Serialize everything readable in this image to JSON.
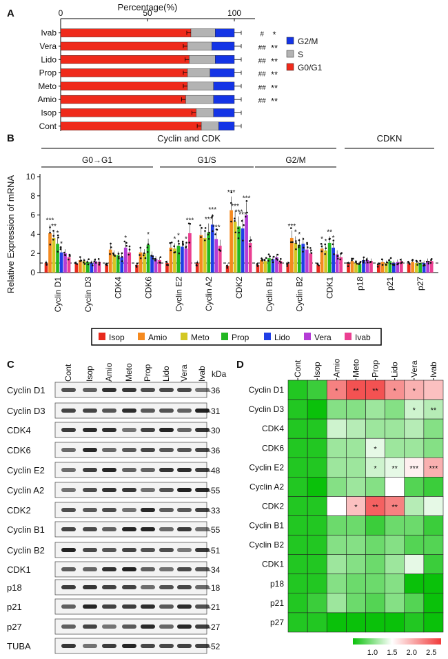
{
  "panel_labels": {
    "a": "A",
    "b": "B",
    "c": "C",
    "d": "D"
  },
  "chart_data": [
    {
      "panel": "A",
      "type": "bar",
      "orientation": "horizontal",
      "stacked": true,
      "xlabel": "Percentage(%)",
      "xlim": [
        0,
        100
      ],
      "xticks": [
        "0",
        "50",
        "100"
      ],
      "categories": [
        "Ivab",
        "Vera",
        "Lido",
        "Prop",
        "Meto",
        "Amio",
        "Isop",
        "Cont"
      ],
      "series": [
        {
          "name": "G0/G1",
          "color": "#ef2a1b",
          "values": [
            75,
            73,
            74,
            73,
            73,
            72,
            78,
            81
          ]
        },
        {
          "name": "S",
          "color": "#b3b3b3",
          "values": [
            14,
            14,
            15,
            13,
            15,
            16,
            10,
            10
          ]
        },
        {
          "name": "G2/M",
          "color": "#1434e6",
          "values": [
            11,
            13,
            11,
            14,
            12,
            12,
            12,
            9
          ]
        }
      ],
      "legend_order": [
        "G2/M",
        "S",
        "G0/G1"
      ],
      "legend_position": "right",
      "significance": [
        {
          "row": "Ivab",
          "hash": "#",
          "stars": "*"
        },
        {
          "row": "Vera",
          "hash": "##",
          "stars": "**"
        },
        {
          "row": "Lido",
          "hash": "##",
          "stars": "**"
        },
        {
          "row": "Prop",
          "hash": "##",
          "stars": "**"
        },
        {
          "row": "Meto",
          "hash": "##",
          "stars": "**"
        },
        {
          "row": "Amio",
          "hash": "##",
          "stars": "**"
        },
        {
          "row": "Isop",
          "hash": "",
          "stars": ""
        },
        {
          "row": "Cont",
          "hash": "",
          "stars": ""
        }
      ]
    },
    {
      "panel": "B",
      "type": "bar",
      "ylabel": "Relative Expression of mRNA",
      "ylim": [
        0,
        10
      ],
      "yticks": [
        "0",
        "2",
        "4",
        "6",
        "8",
        "10"
      ],
      "reference_line": 1,
      "categories": [
        "Cyclin D1",
        "Cyclin D3",
        "CDK4",
        "CDK6",
        "Cyclin E2",
        "Cyclin A2",
        "CDK2",
        "Cyclin B1",
        "Cyclin B2",
        "CDK1",
        "p18",
        "p21",
        "p27"
      ],
      "groups": {
        "top": [
          {
            "label": "Cyclin and CDK"
          },
          {
            "label": "CDKN"
          }
        ],
        "sub": [
          {
            "label": "G0→G1"
          },
          {
            "label": "G1/S"
          },
          {
            "label": "G2/M"
          }
        ]
      },
      "series": [
        {
          "name": "Isop",
          "color": "#e8291c",
          "values": [
            1.0,
            0.9,
            0.8,
            0.8,
            1.0,
            1.0,
            0.7,
            0.8,
            0.9,
            0.8,
            0.9,
            0.8,
            0.9
          ]
        },
        {
          "name": "Amio",
          "color": "#f58a1f",
          "values": [
            4.1,
            1.3,
            2.4,
            2.1,
            2.6,
            3.9,
            6.5,
            1.3,
            3.6,
            2.5,
            1.2,
            1.1,
            1.1
          ]
        },
        {
          "name": "Meto",
          "color": "#d3c723",
          "values": [
            3.6,
            1.2,
            1.9,
            2.0,
            2.5,
            3.6,
            5.3,
            1.2,
            3.1,
            2.3,
            1.0,
            1.0,
            1.0
          ]
        },
        {
          "name": "Prop",
          "color": "#22b822",
          "values": [
            3.0,
            1.1,
            1.8,
            2.9,
            2.8,
            4.2,
            4.8,
            1.5,
            2.9,
            3.1,
            0.9,
            1.2,
            1.0
          ]
        },
        {
          "name": "Lido",
          "color": "#1f3ee6",
          "values": [
            2.1,
            1.0,
            1.6,
            1.8,
            2.7,
            5.0,
            4.6,
            1.4,
            3.0,
            2.6,
            1.3,
            1.0,
            1.0
          ]
        },
        {
          "name": "Vera",
          "color": "#b43cd6",
          "values": [
            2.0,
            1.2,
            2.6,
            1.4,
            2.5,
            3.5,
            6.0,
            1.6,
            2.4,
            1.9,
            1.3,
            1.1,
            1.2
          ]
        },
        {
          "name": "Ivab",
          "color": "#eb3f91",
          "values": [
            1.6,
            1.1,
            2.1,
            1.3,
            4.1,
            2.8,
            3.1,
            1.2,
            2.0,
            1.6,
            1.2,
            1.2,
            1.2
          ]
        }
      ],
      "significance": [
        {
          "category": "Cyclin D1",
          "series": "Amio",
          "label": "***"
        },
        {
          "category": "Cyclin D1",
          "series": "Meto",
          "label": "**"
        },
        {
          "category": "Cyclin D1",
          "series": "Prop",
          "label": "*"
        },
        {
          "category": "Cyclin D1",
          "series": "Lido",
          "label": "*"
        },
        {
          "category": "CDK4",
          "series": "Vera",
          "label": "*"
        },
        {
          "category": "CDK6",
          "series": "Prop",
          "label": "*"
        },
        {
          "category": "Cyclin E2",
          "series": "Meto",
          "label": "*"
        },
        {
          "category": "Cyclin E2",
          "series": "Prop",
          "label": "*"
        },
        {
          "category": "Cyclin E2",
          "series": "Vera",
          "label": "*"
        },
        {
          "category": "Cyclin E2",
          "series": "Ivab",
          "label": "***"
        },
        {
          "category": "Cyclin A2",
          "series": "Vera",
          "label": "***"
        },
        {
          "category": "Cyclin A2",
          "series": "Prop",
          "label": "***"
        },
        {
          "category": "Cyclin A2",
          "series": "Lido",
          "label": "***"
        },
        {
          "category": "CDK2",
          "series": "Amio",
          "label": "***"
        },
        {
          "category": "CDK2",
          "series": "Meto",
          "label": "***"
        },
        {
          "category": "CDK2",
          "series": "Prop",
          "label": "***"
        },
        {
          "category": "CDK2",
          "series": "Lido",
          "label": "***"
        },
        {
          "category": "CDK2",
          "series": "Vera",
          "label": "***"
        },
        {
          "category": "Cyclin B2",
          "series": "Amio",
          "label": "***"
        },
        {
          "category": "Cyclin B2",
          "series": "Meto",
          "label": "*"
        },
        {
          "category": "Cyclin B2",
          "series": "Prop",
          "label": "*"
        },
        {
          "category": "CDK1",
          "series": "Amio",
          "label": "*"
        },
        {
          "category": "CDK1",
          "series": "Meto",
          "label": "*"
        },
        {
          "category": "CDK1",
          "series": "Prop",
          "label": "**"
        },
        {
          "category": "CDK1",
          "series": "Lido",
          "label": "*"
        }
      ],
      "legend": [
        "Isop",
        "Amio",
        "Meto",
        "Prop",
        "Lido",
        "Vera",
        "Ivab"
      ],
      "legend_position": "bottom"
    },
    {
      "panel": "D",
      "type": "heatmap",
      "columns": [
        "Cont",
        "Isop",
        "Amio",
        "Meto",
        "Prop",
        "Lido",
        "Vera",
        "Ivab"
      ],
      "rows": [
        "Cyclin D1",
        "Cyclin D3",
        "CDK4",
        "CDK6",
        "Cyclin E2",
        "Cyclin A2",
        "CDK2",
        "Cyclin B1",
        "Cyclin B2",
        "CDK1",
        "p18",
        "p21",
        "p27"
      ],
      "values": [
        [
          0.6,
          0.7,
          2.3,
          2.6,
          2.6,
          2.2,
          2.0,
          1.9
        ],
        [
          0.6,
          0.5,
          1.0,
          1.0,
          1.1,
          1.0,
          1.3,
          1.2
        ],
        [
          0.6,
          0.6,
          1.3,
          1.2,
          1.1,
          1.1,
          1.2,
          1.0
        ],
        [
          0.6,
          0.6,
          1.1,
          1.1,
          1.4,
          1.1,
          1.1,
          1.0
        ],
        [
          0.6,
          0.6,
          1.1,
          1.1,
          1.3,
          1.4,
          1.6,
          2.0
        ],
        [
          0.6,
          0.4,
          1.0,
          1.1,
          1.0,
          1.5,
          0.8,
          0.7
        ],
        [
          0.6,
          0.6,
          1.5,
          1.9,
          2.5,
          2.3,
          1.2,
          1.4
        ],
        [
          0.6,
          0.6,
          0.9,
          0.9,
          0.7,
          0.9,
          0.9,
          0.7
        ],
        [
          0.6,
          0.6,
          1.0,
          1.0,
          0.9,
          1.0,
          0.8,
          0.8
        ],
        [
          0.6,
          0.6,
          1.1,
          1.0,
          0.9,
          1.1,
          1.4,
          0.7
        ],
        [
          0.6,
          0.6,
          1.0,
          0.9,
          0.9,
          1.0,
          0.5,
          0.4
        ],
        [
          0.6,
          0.7,
          1.1,
          0.9,
          0.8,
          1.0,
          0.8,
          0.5
        ],
        [
          0.6,
          0.6,
          0.5,
          0.5,
          0.5,
          0.5,
          0.6,
          0.5
        ]
      ],
      "annotations": [
        {
          "row": "Cyclin D1",
          "col": "Amio",
          "label": "*"
        },
        {
          "row": "Cyclin D1",
          "col": "Meto",
          "label": "**"
        },
        {
          "row": "Cyclin D1",
          "col": "Prop",
          "label": "**"
        },
        {
          "row": "Cyclin D1",
          "col": "Lido",
          "label": "*"
        },
        {
          "row": "Cyclin D1",
          "col": "Vera",
          "label": "*"
        },
        {
          "row": "Cyclin D3",
          "col": "Vera",
          "label": "*"
        },
        {
          "row": "Cyclin D3",
          "col": "Ivab",
          "label": "**"
        },
        {
          "row": "CDK6",
          "col": "Prop",
          "label": "*"
        },
        {
          "row": "Cyclin E2",
          "col": "Prop",
          "label": "*"
        },
        {
          "row": "Cyclin E2",
          "col": "Lido",
          "label": "**"
        },
        {
          "row": "Cyclin E2",
          "col": "Vera",
          "label": "***"
        },
        {
          "row": "Cyclin E2",
          "col": "Ivab",
          "label": "***"
        },
        {
          "row": "CDK2",
          "col": "Meto",
          "label": "*"
        },
        {
          "row": "CDK2",
          "col": "Prop",
          "label": "**"
        },
        {
          "row": "CDK2",
          "col": "Lido",
          "label": "**"
        }
      ],
      "colorbar": {
        "ticks": [
          "1.0",
          "1.5",
          "2.0",
          "2.5"
        ],
        "range": [
          0.5,
          2.75
        ],
        "low_color": "#0ac10a",
        "mid_color": "#ffffff",
        "high_color": "#f13a3a"
      }
    }
  ],
  "blot": {
    "lanes": [
      "Cont",
      "Isop",
      "Amio",
      "Meto",
      "Prop",
      "Lido",
      "Vera",
      "Ivab"
    ],
    "unit": "kDa",
    "rows": [
      {
        "protein": "Cyclin D1",
        "kda": "-36"
      },
      {
        "protein": "Cyclin D3",
        "kda": "-31"
      },
      {
        "protein": "CDK4",
        "kda": "-30"
      },
      {
        "protein": "CDK6",
        "kda": "-36"
      },
      {
        "protein": "Cyclin E2",
        "kda": "-48"
      },
      {
        "protein": "Cyclin A2",
        "kda": "-55"
      },
      {
        "protein": "CDK2",
        "kda": "-33"
      },
      {
        "protein": "Cyclin B1",
        "kda": "-55"
      },
      {
        "protein": "Cyclin B2",
        "kda": "-51"
      },
      {
        "protein": "CDK1",
        "kda": "-34"
      },
      {
        "protein": "p18",
        "kda": "-18"
      },
      {
        "protein": "p21",
        "kda": "-21"
      },
      {
        "protein": "p27",
        "kda": "-27"
      },
      {
        "protein": "TUBA",
        "kda": "-52"
      }
    ]
  }
}
